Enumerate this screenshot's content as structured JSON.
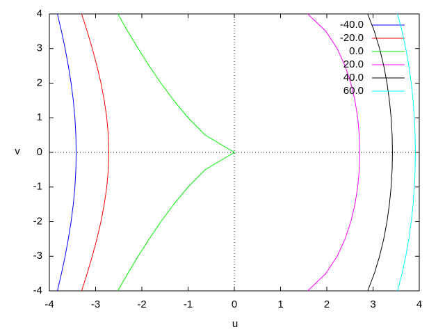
{
  "chart_data": {
    "type": "line",
    "x_label": "u",
    "y_label": "v",
    "xlim": [
      -4,
      4
    ],
    "ylim": [
      -4,
      4
    ],
    "xticks": [
      -4,
      -3,
      -2,
      -1,
      0,
      1,
      2,
      3,
      4
    ],
    "yticks": [
      -4,
      -3,
      -2,
      -1,
      0,
      1,
      2,
      3,
      4
    ],
    "zero_axes": true,
    "legend": "top-right",
    "y": [
      -4,
      -3.5,
      -3,
      -2.5,
      -2,
      -1.5,
      -1,
      -0.5,
      0,
      0.5,
      1,
      1.5,
      2,
      2.5,
      3,
      3.5,
      4
    ],
    "series": [
      {
        "name": "-40.0",
        "color": "#0000ff",
        "x": [
          -3.826,
          -3.739,
          -3.659,
          -3.59,
          -3.53,
          -3.482,
          -3.448,
          -3.427,
          -3.42,
          -3.427,
          -3.448,
          -3.482,
          -3.53,
          -3.59,
          -3.659,
          -3.739,
          -3.826
        ]
      },
      {
        "name": "-20.0",
        "color": "#ff0000",
        "x": [
          -3.302,
          -3.183,
          -3.072,
          -2.972,
          -2.884,
          -2.813,
          -2.759,
          -2.725,
          -2.714,
          -2.725,
          -2.759,
          -2.813,
          -2.884,
          -2.972,
          -3.072,
          -3.183,
          -3.302
        ]
      },
      {
        "name": "0.0",
        "color": "#00ee00",
        "x": [
          -2.52,
          -2.305,
          -2.08,
          -1.842,
          -1.587,
          -1.31,
          -1,
          -0.63,
          0,
          -0.63,
          -1,
          -1.31,
          -1.587,
          -1.842,
          -2.08,
          -2.305,
          -2.52
        ]
      },
      {
        "name": "20.0",
        "color": "#ff00ff",
        "x": [
          1.587,
          1.979,
          2.224,
          2.396,
          2.52,
          2.609,
          2.668,
          2.703,
          2.714,
          2.703,
          2.668,
          2.609,
          2.52,
          2.396,
          2.224,
          1.979,
          1.587
        ]
      },
      {
        "name": "40.0",
        "color": "#000000",
        "x": [
          2.884,
          3.028,
          3.141,
          3.232,
          3.302,
          3.354,
          3.391,
          3.413,
          3.42,
          3.413,
          3.391,
          3.354,
          3.302,
          3.232,
          3.141,
          3.028,
          2.884
        ]
      },
      {
        "name": "60.0",
        "color": "#00ffff",
        "x": [
          3.53,
          3.628,
          3.708,
          3.774,
          3.826,
          3.866,
          3.893,
          3.91,
          3.915,
          3.91,
          3.893,
          3.866,
          3.826,
          3.774,
          3.708,
          3.628,
          3.53
        ]
      }
    ]
  }
}
